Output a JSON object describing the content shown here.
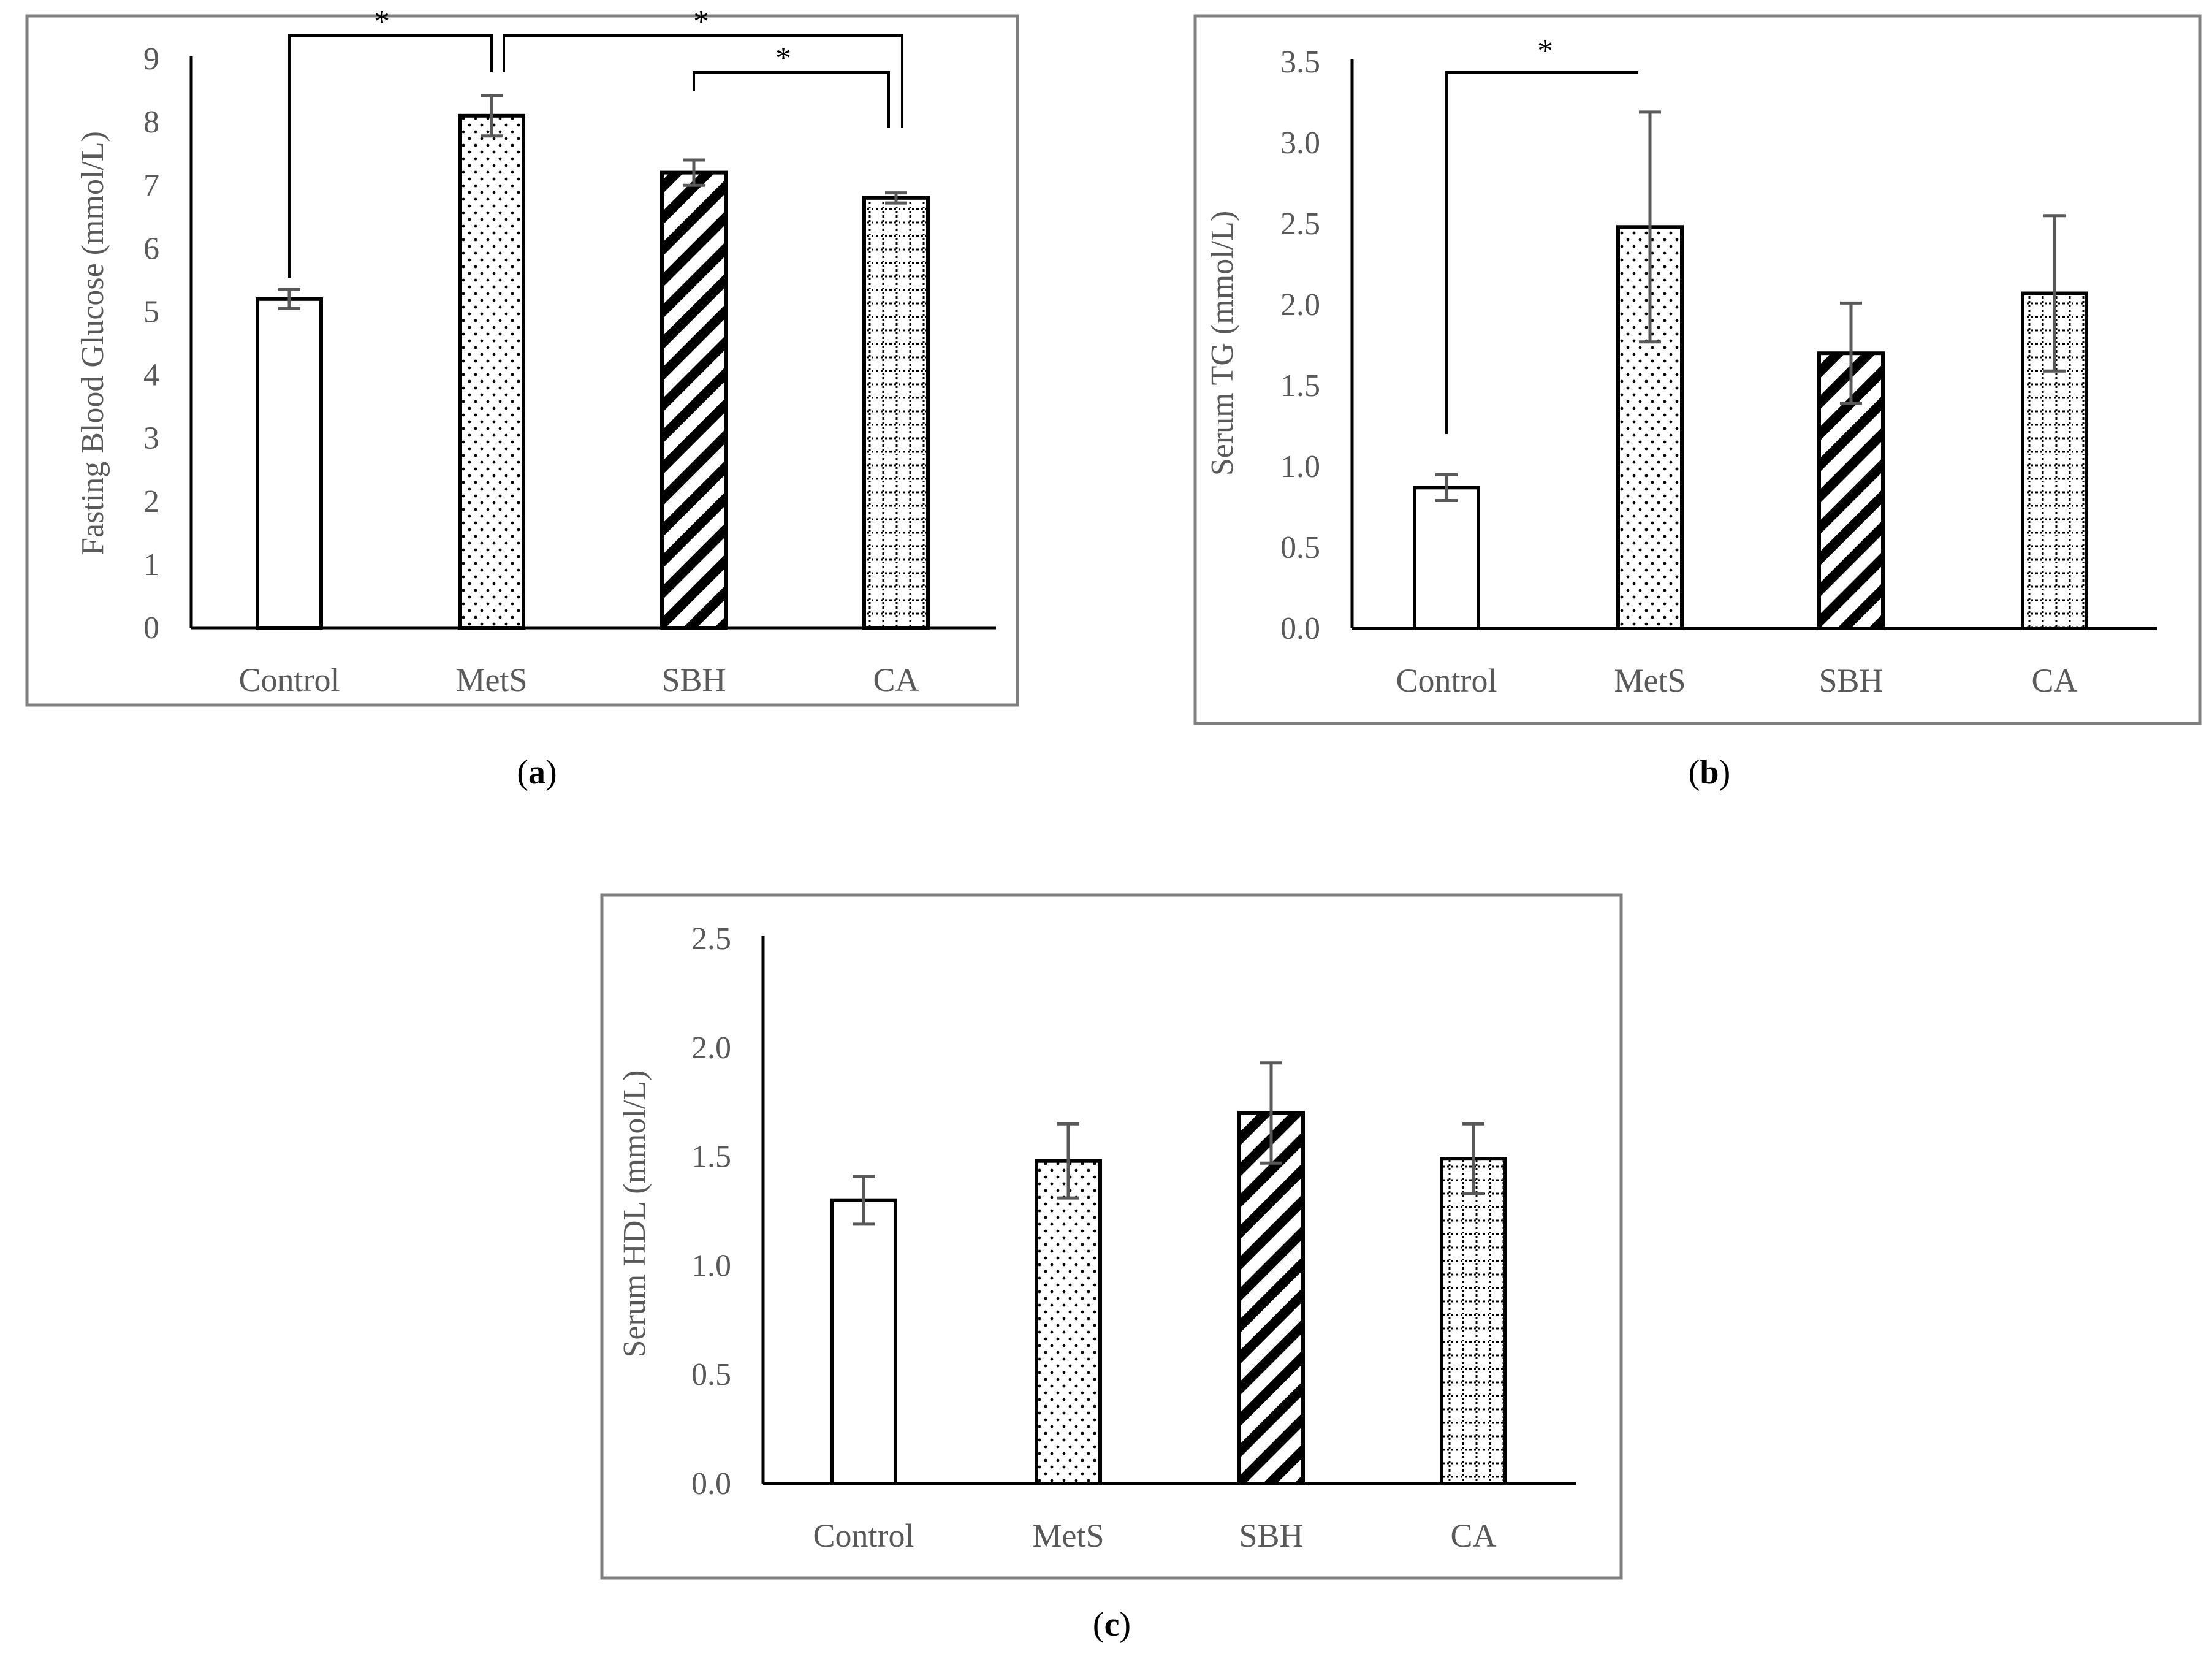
{
  "chart_data": [
    {
      "panel": "a",
      "caption": {
        "open": "(",
        "letter": "a",
        "close": ")"
      },
      "type": "bar",
      "title": "",
      "xlabel": "",
      "ylabel": "Fasting Blood Glucose (mmol/L)",
      "categories": [
        "Control",
        "MetS",
        "SBH",
        "CA"
      ],
      "patterns": [
        "none",
        "dots",
        "diagonal",
        "grid"
      ],
      "values": [
        5.2,
        8.1,
        7.2,
        6.8
      ],
      "errors": [
        0.15,
        0.32,
        0.2,
        0.08
      ],
      "ylim": [
        0,
        9
      ],
      "yticks": [
        0,
        1,
        2,
        3,
        4,
        5,
        6,
        7,
        8,
        9
      ],
      "ytick_labels": [
        "0",
        "1",
        "2",
        "3",
        "4",
        "5",
        "6",
        "7",
        "8",
        "9"
      ],
      "significance": [
        {
          "from": 0,
          "to": 1,
          "label": "*"
        },
        {
          "from": 1,
          "to": 3,
          "label": "*"
        },
        {
          "from": 2,
          "to": 3,
          "label": "*"
        }
      ]
    },
    {
      "panel": "b",
      "caption": {
        "open": "(",
        "letter": "b",
        "close": ")"
      },
      "type": "bar",
      "title": "",
      "xlabel": "",
      "ylabel": "Serum TG (mmol/L)",
      "categories": [
        "Control",
        "MetS",
        "SBH",
        "CA"
      ],
      "patterns": [
        "none",
        "dots",
        "diagonal",
        "grid"
      ],
      "values": [
        0.87,
        2.48,
        1.7,
        2.07
      ],
      "errors": [
        0.08,
        0.71,
        0.31,
        0.48
      ],
      "ylim": [
        0,
        3.5
      ],
      "yticks": [
        0,
        0.5,
        1.0,
        1.5,
        2.0,
        2.5,
        3.0,
        3.5
      ],
      "ytick_labels": [
        "0.0",
        "0.5",
        "1.0",
        "1.5",
        "2.0",
        "2.5",
        "3.0",
        "3.5"
      ],
      "significance": [
        {
          "from": 0,
          "to": 1,
          "label": "*"
        }
      ]
    },
    {
      "panel": "c",
      "caption": {
        "open": "(",
        "letter": "c",
        "close": ")"
      },
      "type": "bar",
      "title": "",
      "xlabel": "",
      "ylabel": "Serum HDL (mmol/L)",
      "categories": [
        "Control",
        "MetS",
        "SBH",
        "CA"
      ],
      "patterns": [
        "none",
        "dots",
        "diagonal",
        "grid"
      ],
      "values": [
        1.3,
        1.48,
        1.7,
        1.49
      ],
      "errors": [
        0.11,
        0.17,
        0.23,
        0.16
      ],
      "ylim": [
        0,
        2.5
      ],
      "yticks": [
        0,
        0.5,
        1.0,
        1.5,
        2.0,
        2.5
      ],
      "ytick_labels": [
        "0.0",
        "0.5",
        "1.0",
        "1.5",
        "2.0",
        "2.5"
      ],
      "significance": []
    }
  ],
  "colors": {
    "frame": "#7f7f7f",
    "axis": "#000000",
    "text": "#595959",
    "bar_stroke": "#000000",
    "bar_fill": "#ffffff",
    "error": "#595959",
    "bracket": "#000000"
  }
}
